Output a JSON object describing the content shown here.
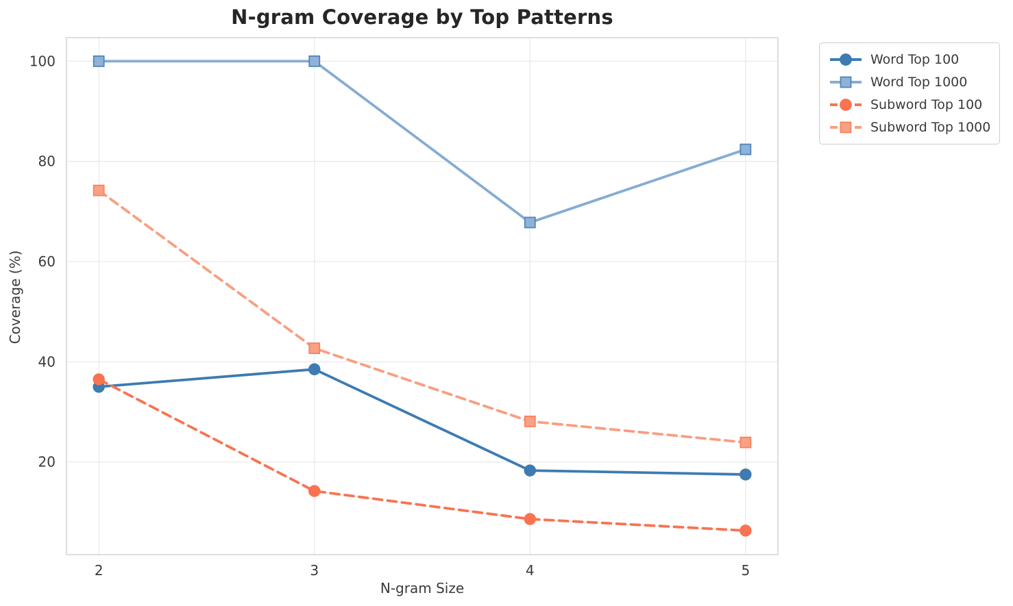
{
  "chart_data": {
    "type": "line",
    "title": "N-gram Coverage by Top Patterns",
    "xlabel": "N-gram Size",
    "ylabel": "Coverage (%)",
    "x": [
      2,
      3,
      4,
      5
    ],
    "xticks": [
      "2",
      "3",
      "4",
      "5"
    ],
    "yticks": [
      20,
      40,
      60,
      80,
      100
    ],
    "xlim": [
      1.85,
      5.15
    ],
    "ylim": [
      1.5,
      104.7
    ],
    "grid": true,
    "legend_position": "outside-upper-right",
    "series": [
      {
        "name": "Word Top 100",
        "values": [
          35.0,
          38.5,
          18.3,
          17.5
        ],
        "color": "#3D7BB1",
        "marker": "circle",
        "marker_fill": "#3D7BB1",
        "marker_edge": "#3D7BB1",
        "line_style": "solid"
      },
      {
        "name": "Word Top 1000",
        "values": [
          100.0,
          100.0,
          67.8,
          82.4
        ],
        "color": "#86ACD2",
        "marker": "square",
        "marker_fill": "#8FB2D6",
        "marker_edge": "#4E86BC",
        "line_style": "solid"
      },
      {
        "name": "Subword Top 100",
        "values": [
          36.5,
          14.2,
          8.6,
          6.3
        ],
        "color": "#F97350",
        "marker": "circle",
        "marker_fill": "#F97350",
        "marker_edge": "#F97350",
        "line_style": "dashed"
      },
      {
        "name": "Subword Top 1000",
        "values": [
          74.2,
          42.7,
          28.1,
          23.9
        ],
        "color": "#F99E80",
        "marker": "square",
        "marker_fill": "#F9A184",
        "marker_edge": "#F8825E",
        "line_style": "dashed"
      }
    ],
    "style": {
      "grid_color": "#eaeaee",
      "spine_color": "#d0d0d6",
      "tick_label_color": "#3a3a3a",
      "title_color": "#262626",
      "background": "#ffffff"
    }
  }
}
